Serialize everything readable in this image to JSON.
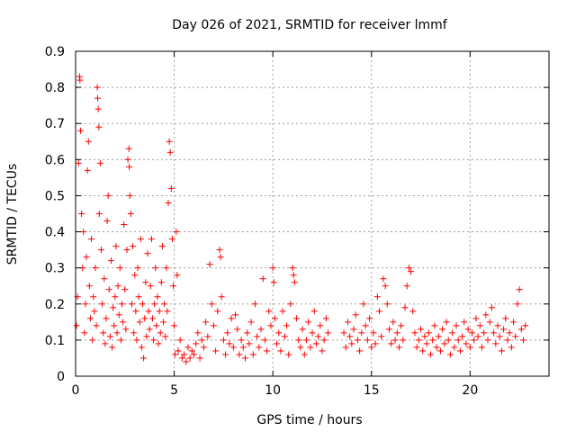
{
  "chart_data": {
    "type": "scatter",
    "title": "Day 026 of 2021, SRMTID for receiver lmmf",
    "xlabel": "GPS time / hours",
    "ylabel": "SRMTID / TECUs",
    "xlim": [
      0,
      24
    ],
    "ylim": [
      0,
      0.9
    ],
    "xticks": [
      0,
      5,
      10,
      15,
      20
    ],
    "yticks": [
      0,
      0.1,
      0.2,
      0.3,
      0.4,
      0.5,
      0.6,
      0.7,
      0.8,
      0.9
    ],
    "xtick_labels": [
      "0",
      "5",
      "10",
      "15",
      "20"
    ],
    "ytick_labels": [
      "0",
      "0.1",
      "0.2",
      "0.3",
      "0.4",
      "0.5",
      "0.6",
      "0.7",
      "0.8",
      "0.9"
    ],
    "grid": true,
    "marker": "+",
    "series_color": "#ff0000",
    "series": [
      {
        "name": "SRMTID",
        "points": [
          [
            0.05,
            0.14
          ],
          [
            0.1,
            0.22
          ],
          [
            0.15,
            0.59
          ],
          [
            0.2,
            0.83
          ],
          [
            0.22,
            0.82
          ],
          [
            0.25,
            0.68
          ],
          [
            0.3,
            0.45
          ],
          [
            0.35,
            0.3
          ],
          [
            0.4,
            0.4
          ],
          [
            0.45,
            0.12
          ],
          [
            0.5,
            0.2
          ],
          [
            0.55,
            0.33
          ],
          [
            0.6,
            0.57
          ],
          [
            0.65,
            0.65
          ],
          [
            0.7,
            0.25
          ],
          [
            0.75,
            0.16
          ],
          [
            0.8,
            0.38
          ],
          [
            0.85,
            0.1
          ],
          [
            0.9,
            0.22
          ],
          [
            0.95,
            0.18
          ],
          [
            1.0,
            0.3
          ],
          [
            1.05,
            0.14
          ],
          [
            1.1,
            0.8
          ],
          [
            1.12,
            0.77
          ],
          [
            1.15,
            0.74
          ],
          [
            1.18,
            0.69
          ],
          [
            1.2,
            0.45
          ],
          [
            1.25,
            0.59
          ],
          [
            1.3,
            0.35
          ],
          [
            1.35,
            0.2
          ],
          [
            1.4,
            0.12
          ],
          [
            1.45,
            0.27
          ],
          [
            1.5,
            0.09
          ],
          [
            1.55,
            0.16
          ],
          [
            1.6,
            0.43
          ],
          [
            1.65,
            0.5
          ],
          [
            1.7,
            0.24
          ],
          [
            1.75,
            0.11
          ],
          [
            1.8,
            0.32
          ],
          [
            1.85,
            0.08
          ],
          [
            1.9,
            0.19
          ],
          [
            1.95,
            0.14
          ],
          [
            2.0,
            0.22
          ],
          [
            2.05,
            0.36
          ],
          [
            2.1,
            0.12
          ],
          [
            2.15,
            0.25
          ],
          [
            2.2,
            0.17
          ],
          [
            2.25,
            0.3
          ],
          [
            2.3,
            0.1
          ],
          [
            2.35,
            0.2
          ],
          [
            2.4,
            0.15
          ],
          [
            2.45,
            0.42
          ],
          [
            2.5,
            0.24
          ],
          [
            2.55,
            0.13
          ],
          [
            2.6,
            0.35
          ],
          [
            2.65,
            0.6
          ],
          [
            2.7,
            0.63
          ],
          [
            2.72,
            0.58
          ],
          [
            2.75,
            0.5
          ],
          [
            2.8,
            0.45
          ],
          [
            2.85,
            0.2
          ],
          [
            2.9,
            0.36
          ],
          [
            2.95,
            0.12
          ],
          [
            3.0,
            0.28
          ],
          [
            3.05,
            0.18
          ],
          [
            3.1,
            0.1
          ],
          [
            3.15,
            0.3
          ],
          [
            3.2,
            0.22
          ],
          [
            3.25,
            0.15
          ],
          [
            3.3,
            0.38
          ],
          [
            3.35,
            0.08
          ],
          [
            3.4,
            0.2
          ],
          [
            3.45,
            0.05
          ],
          [
            3.5,
            0.16
          ],
          [
            3.55,
            0.26
          ],
          [
            3.6,
            0.11
          ],
          [
            3.65,
            0.34
          ],
          [
            3.7,
            0.18
          ],
          [
            3.75,
            0.13
          ],
          [
            3.8,
            0.25
          ],
          [
            3.85,
            0.38
          ],
          [
            3.9,
            0.16
          ],
          [
            3.95,
            0.1
          ],
          [
            4.0,
            0.2
          ],
          [
            4.05,
            0.3
          ],
          [
            4.1,
            0.14
          ],
          [
            4.15,
            0.22
          ],
          [
            4.2,
            0.09
          ],
          [
            4.25,
            0.18
          ],
          [
            4.3,
            0.12
          ],
          [
            4.35,
            0.26
          ],
          [
            4.4,
            0.36
          ],
          [
            4.45,
            0.15
          ],
          [
            4.5,
            0.2
          ],
          [
            4.55,
            0.11
          ],
          [
            4.6,
            0.3
          ],
          [
            4.65,
            0.18
          ],
          [
            4.7,
            0.48
          ],
          [
            4.75,
            0.65
          ],
          [
            4.8,
            0.62
          ],
          [
            4.85,
            0.52
          ],
          [
            4.9,
            0.38
          ],
          [
            4.95,
            0.25
          ],
          [
            5.0,
            0.14
          ],
          [
            5.05,
            0.06
          ],
          [
            5.1,
            0.4
          ],
          [
            5.15,
            0.28
          ],
          [
            5.2,
            0.07
          ],
          [
            5.3,
            0.1
          ],
          [
            5.4,
            0.05
          ],
          [
            5.5,
            0.06
          ],
          [
            5.6,
            0.04
          ],
          [
            5.7,
            0.08
          ],
          [
            5.8,
            0.05
          ],
          [
            5.9,
            0.07
          ],
          [
            6.0,
            0.06
          ],
          [
            6.1,
            0.09
          ],
          [
            6.2,
            0.12
          ],
          [
            6.3,
            0.05
          ],
          [
            6.4,
            0.1
          ],
          [
            6.5,
            0.08
          ],
          [
            6.6,
            0.15
          ],
          [
            6.7,
            0.11
          ],
          [
            6.8,
            0.31
          ],
          [
            6.9,
            0.2
          ],
          [
            7.0,
            0.14
          ],
          [
            7.1,
            0.07
          ],
          [
            7.2,
            0.18
          ],
          [
            7.3,
            0.35
          ],
          [
            7.35,
            0.33
          ],
          [
            7.4,
            0.22
          ],
          [
            7.5,
            0.1
          ],
          [
            7.6,
            0.06
          ],
          [
            7.7,
            0.12
          ],
          [
            7.8,
            0.09
          ],
          [
            7.9,
            0.16
          ],
          [
            8.0,
            0.08
          ],
          [
            8.1,
            0.17
          ],
          [
            8.2,
            0.13
          ],
          [
            8.3,
            0.06
          ],
          [
            8.4,
            0.1
          ],
          [
            8.5,
            0.08
          ],
          [
            8.6,
            0.05
          ],
          [
            8.7,
            0.12
          ],
          [
            8.8,
            0.09
          ],
          [
            8.9,
            0.15
          ],
          [
            9.0,
            0.06
          ],
          [
            9.1,
            0.2
          ],
          [
            9.2,
            0.11
          ],
          [
            9.3,
            0.08
          ],
          [
            9.4,
            0.13
          ],
          [
            9.5,
            0.27
          ],
          [
            9.6,
            0.1
          ],
          [
            9.7,
            0.07
          ],
          [
            9.8,
            0.18
          ],
          [
            9.9,
            0.14
          ],
          [
            10.0,
            0.3
          ],
          [
            10.05,
            0.26
          ],
          [
            10.1,
            0.16
          ],
          [
            10.2,
            0.09
          ],
          [
            10.3,
            0.12
          ],
          [
            10.4,
            0.07
          ],
          [
            10.5,
            0.18
          ],
          [
            10.6,
            0.11
          ],
          [
            10.7,
            0.14
          ],
          [
            10.8,
            0.06
          ],
          [
            10.9,
            0.2
          ],
          [
            11.0,
            0.3
          ],
          [
            11.05,
            0.28
          ],
          [
            11.1,
            0.26
          ],
          [
            11.2,
            0.16
          ],
          [
            11.3,
            0.1
          ],
          [
            11.4,
            0.08
          ],
          [
            11.5,
            0.13
          ],
          [
            11.6,
            0.06
          ],
          [
            11.7,
            0.1
          ],
          [
            11.8,
            0.15
          ],
          [
            11.9,
            0.08
          ],
          [
            12.0,
            0.12
          ],
          [
            12.1,
            0.18
          ],
          [
            12.2,
            0.09
          ],
          [
            12.3,
            0.11
          ],
          [
            12.4,
            0.14
          ],
          [
            12.5,
            0.07
          ],
          [
            12.6,
            0.1
          ],
          [
            12.7,
            0.16
          ],
          [
            12.8,
            0.12
          ],
          [
            13.6,
            0.12
          ],
          [
            13.7,
            0.08
          ],
          [
            13.8,
            0.15
          ],
          [
            13.9,
            0.11
          ],
          [
            14.0,
            0.09
          ],
          [
            14.1,
            0.13
          ],
          [
            14.2,
            0.17
          ],
          [
            14.3,
            0.1
          ],
          [
            14.4,
            0.07
          ],
          [
            14.5,
            0.12
          ],
          [
            14.6,
            0.2
          ],
          [
            14.7,
            0.14
          ],
          [
            14.8,
            0.1
          ],
          [
            14.9,
            0.16
          ],
          [
            15.0,
            0.08
          ],
          [
            15.1,
            0.12
          ],
          [
            15.2,
            0.09
          ],
          [
            15.3,
            0.22
          ],
          [
            15.4,
            0.18
          ],
          [
            15.5,
            0.11
          ],
          [
            15.6,
            0.27
          ],
          [
            15.7,
            0.25
          ],
          [
            15.8,
            0.2
          ],
          [
            15.9,
            0.13
          ],
          [
            16.0,
            0.09
          ],
          [
            16.1,
            0.15
          ],
          [
            16.2,
            0.1
          ],
          [
            16.3,
            0.12
          ],
          [
            16.4,
            0.08
          ],
          [
            16.5,
            0.14
          ],
          [
            16.6,
            0.1
          ],
          [
            16.7,
            0.19
          ],
          [
            16.8,
            0.25
          ],
          [
            16.9,
            0.3
          ],
          [
            17.0,
            0.29
          ],
          [
            17.1,
            0.18
          ],
          [
            17.2,
            0.12
          ],
          [
            17.3,
            0.08
          ],
          [
            17.4,
            0.1
          ],
          [
            17.5,
            0.13
          ],
          [
            17.6,
            0.07
          ],
          [
            17.7,
            0.11
          ],
          [
            17.8,
            0.09
          ],
          [
            17.9,
            0.12
          ],
          [
            18.0,
            0.06
          ],
          [
            18.1,
            0.1
          ],
          [
            18.2,
            0.14
          ],
          [
            18.3,
            0.08
          ],
          [
            18.4,
            0.11
          ],
          [
            18.5,
            0.07
          ],
          [
            18.6,
            0.13
          ],
          [
            18.7,
            0.09
          ],
          [
            18.8,
            0.15
          ],
          [
            18.9,
            0.1
          ],
          [
            19.0,
            0.06
          ],
          [
            19.1,
            0.12
          ],
          [
            19.2,
            0.08
          ],
          [
            19.3,
            0.14
          ],
          [
            19.4,
            0.1
          ],
          [
            19.5,
            0.07
          ],
          [
            19.6,
            0.11
          ],
          [
            19.7,
            0.15
          ],
          [
            19.8,
            0.09
          ],
          [
            19.9,
            0.13
          ],
          [
            20.0,
            0.08
          ],
          [
            20.1,
            0.12
          ],
          [
            20.2,
            0.1
          ],
          [
            20.3,
            0.16
          ],
          [
            20.4,
            0.11
          ],
          [
            20.5,
            0.14
          ],
          [
            20.6,
            0.08
          ],
          [
            20.7,
            0.12
          ],
          [
            20.8,
            0.17
          ],
          [
            20.9,
            0.1
          ],
          [
            21.0,
            0.15
          ],
          [
            21.1,
            0.19
          ],
          [
            21.2,
            0.12
          ],
          [
            21.3,
            0.09
          ],
          [
            21.4,
            0.14
          ],
          [
            21.5,
            0.11
          ],
          [
            21.6,
            0.07
          ],
          [
            21.7,
            0.13
          ],
          [
            21.8,
            0.16
          ],
          [
            21.9,
            0.1
          ],
          [
            22.0,
            0.12
          ],
          [
            22.1,
            0.08
          ],
          [
            22.2,
            0.15
          ],
          [
            22.3,
            0.11
          ],
          [
            22.4,
            0.2
          ],
          [
            22.5,
            0.24
          ],
          [
            22.6,
            0.13
          ],
          [
            22.7,
            0.1
          ],
          [
            22.8,
            0.14
          ]
        ]
      }
    ]
  }
}
